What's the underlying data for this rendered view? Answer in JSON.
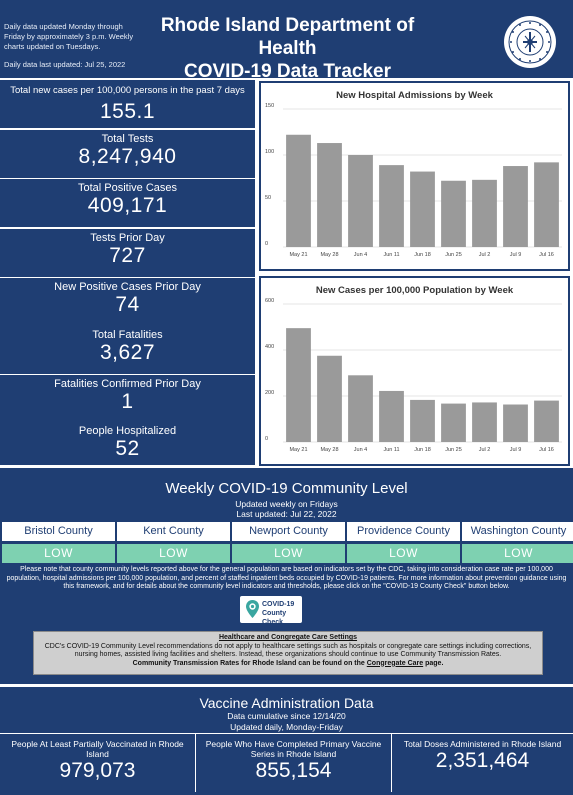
{
  "header": {
    "note_1": "Daily data updated Monday through Friday by approximately 3 p.m. Weekly charts updated on Tuesdays.",
    "note_2": "Daily data last updated: Jul 25, 2022",
    "title_line_1": "Rhode Island Department of Health",
    "title_line_2": "COVID-19 Data Tracker",
    "logo_icon": "ri-department-of-health-seal-icon"
  },
  "stats": [
    {
      "label": "Total new cases per 100,000 persons in the past 7 days",
      "value": "155.1"
    },
    {
      "label": "Total Tests",
      "value": "8,247,940"
    },
    {
      "label": "Total Positive Cases",
      "value": "409,171"
    },
    {
      "label": "Tests Prior Day",
      "value": "727"
    },
    {
      "label": "New Positive Cases Prior Day",
      "value": "74"
    },
    {
      "label": "Total Fatalities",
      "value": "3,627"
    },
    {
      "label": "Fatalities Confirmed Prior Day",
      "value": "1"
    },
    {
      "label": "People Hospitalized",
      "value": "52"
    }
  ],
  "chart_data": [
    {
      "type": "bar",
      "title": "New Hospital Admissions by Week",
      "categories": [
        "May 21",
        "May 28",
        "Jun 4",
        "Jun 11",
        "Jun 18",
        "Jun 25",
        "Jul 2",
        "Jul 9",
        "Jul 16"
      ],
      "values": [
        122,
        113,
        100,
        89,
        82,
        72,
        73,
        88,
        92
      ],
      "yticks": [
        0,
        50,
        100,
        150
      ],
      "ylim": [
        0,
        150
      ],
      "xlabel": "",
      "ylabel": "",
      "bar_color": "#9a9a9a",
      "grid": true
    },
    {
      "type": "bar",
      "title": "New Cases per 100,000 Population by Week",
      "categories": [
        "May 21",
        "May 28",
        "Jun 4",
        "Jun 11",
        "Jun 18",
        "Jun 25",
        "Jul 2",
        "Jul 9",
        "Jul 16"
      ],
      "values": [
        495,
        375,
        290,
        222,
        183,
        167,
        172,
        163,
        180
      ],
      "yticks": [
        0,
        200,
        400,
        600
      ],
      "ylim": [
        0,
        600
      ],
      "xlabel": "",
      "ylabel": "",
      "bar_color": "#9a9a9a",
      "grid": true
    }
  ],
  "community": {
    "title": "Weekly COVID-19 Community Level",
    "sub_1": "Updated weekly on Fridays",
    "sub_2": "Last updated: Jul 22, 2022",
    "counties": [
      {
        "name": "Bristol County",
        "level": "LOW"
      },
      {
        "name": "Kent County",
        "level": "LOW"
      },
      {
        "name": "Newport County",
        "level": "LOW"
      },
      {
        "name": "Providence County",
        "level": "LOW"
      },
      {
        "name": "Washington County",
        "level": "LOW"
      }
    ],
    "level_color": "#7ed1b1",
    "note": "Please note that county community levels reported above for the general population are based on indicators set by the CDC, taking into consideration case rate per 100,000 population, hospital admissions per 100,000 population, and percent of staffed inpatient beds occupied by COVID-19 patients. For more information about prevention guidance using this framework, and for details about the community level indicators and thresholds, please click on the \"COVID-19 County Check\" button below.",
    "county_check_line_1": "COVID-19",
    "county_check_line_2": "County Check",
    "county_check_icon": "map-pin-virus-icon",
    "healthcare_title": "Healthcare and Congregate Care Settings",
    "healthcare_body": "CDC's COVID-19 Community Level recommendations do not apply to healthcare settings such as hospitals or congregate care settings including corrections, nursing homes, assisted living facilities and shelters. Instead, these organizations should continue to use Community Transmission Rates.",
    "healthcare_last_a": "Community Transmission Rates for Rhode Island can be found on the ",
    "healthcare_link": "Congregate Care",
    "healthcare_last_b": " page."
  },
  "vaccine": {
    "title": "Vaccine Administration Data",
    "sub_1": "Data cumulative since 12/14/20",
    "sub_2": "Updated daily, Monday-Friday",
    "boxes": [
      {
        "label": "People At Least Partially Vaccinated in Rhode Island",
        "value": "979,073"
      },
      {
        "label": "People Who Have Completed Primary Vaccine Series in Rhode Island",
        "value": "855,154"
      },
      {
        "label": "Total Doses Administered in Rhode Island",
        "value": "2,351,464"
      }
    ]
  }
}
